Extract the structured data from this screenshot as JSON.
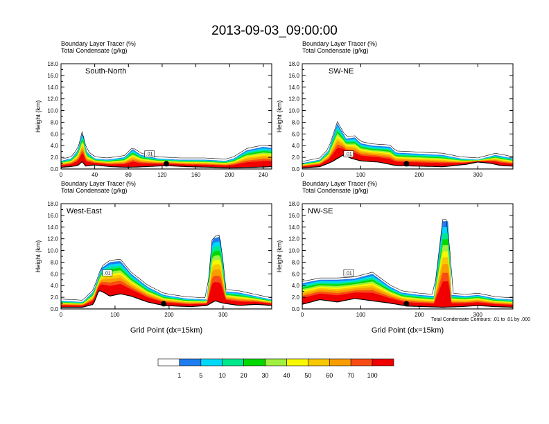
{
  "title": "2013-09-03_09:00:00",
  "field_labels": [
    "Boundary Layer Tracer   (%)",
    "Total Condensate   (g/kg)"
  ],
  "chart_data": [
    {
      "type": "heatmap",
      "label": "South-North",
      "xlim": [
        0,
        250
      ],
      "xticks": [
        0,
        40,
        80,
        120,
        160,
        200,
        240
      ],
      "ylim": [
        0,
        18
      ],
      "yticks": [
        0.0,
        2.0,
        4.0,
        6.0,
        8.0,
        10.0,
        12.0,
        14.0,
        16.0,
        18.0
      ],
      "ylabel": "Height (km)",
      "xlabel": "",
      "terrain": [
        [
          0,
          0.3
        ],
        [
          10,
          0.4
        ],
        [
          20,
          0.6
        ],
        [
          26,
          1.4
        ],
        [
          28,
          0.5
        ],
        [
          40,
          0.7
        ],
        [
          60,
          0.4
        ],
        [
          80,
          0.3
        ],
        [
          100,
          0.4
        ],
        [
          125,
          0.6
        ],
        [
          150,
          0.4
        ],
        [
          180,
          0.3
        ],
        [
          200,
          0.2
        ],
        [
          230,
          0.3
        ],
        [
          250,
          0.4
        ]
      ],
      "pbl_top": [
        [
          0,
          1.4
        ],
        [
          12,
          1.8
        ],
        [
          20,
          3.2
        ],
        [
          26,
          6.6
        ],
        [
          30,
          3.0
        ],
        [
          40,
          1.8
        ],
        [
          55,
          1.6
        ],
        [
          75,
          2.0
        ],
        [
          85,
          3.4
        ],
        [
          95,
          2.4
        ],
        [
          115,
          1.8
        ],
        [
          140,
          1.6
        ],
        [
          170,
          1.6
        ],
        [
          195,
          1.4
        ],
        [
          205,
          1.8
        ],
        [
          220,
          3.2
        ],
        [
          240,
          3.8
        ],
        [
          250,
          3.6
        ]
      ],
      "condensate_contour_label": ".01",
      "marker_x": 125
    },
    {
      "type": "heatmap",
      "label": "SW-NE",
      "xlim": [
        0,
        360
      ],
      "xticks": [
        0,
        100,
        200,
        300
      ],
      "ylim": [
        0,
        18
      ],
      "yticks": [
        0.0,
        2.0,
        4.0,
        6.0,
        8.0,
        10.0,
        12.0,
        14.0,
        16.0,
        18.0
      ],
      "ylabel": "Height (km)",
      "xlabel": "",
      "terrain": [
        [
          0,
          0.2
        ],
        [
          30,
          0.4
        ],
        [
          50,
          1.2
        ],
        [
          70,
          2.4
        ],
        [
          85,
          1.8
        ],
        [
          100,
          1.4
        ],
        [
          130,
          1.2
        ],
        [
          160,
          0.6
        ],
        [
          200,
          0.5
        ],
        [
          240,
          0.4
        ],
        [
          280,
          0.8
        ],
        [
          300,
          1.2
        ],
        [
          320,
          1.0
        ],
        [
          340,
          0.6
        ],
        [
          360,
          0.5
        ]
      ],
      "pbl_top": [
        [
          0,
          1.0
        ],
        [
          30,
          1.6
        ],
        [
          45,
          3.2
        ],
        [
          60,
          7.8
        ],
        [
          75,
          5.2
        ],
        [
          90,
          5.4
        ],
        [
          100,
          4.4
        ],
        [
          120,
          4.0
        ],
        [
          150,
          3.8
        ],
        [
          160,
          2.8
        ],
        [
          200,
          2.6
        ],
        [
          240,
          2.4
        ],
        [
          270,
          1.8
        ],
        [
          300,
          1.6
        ],
        [
          330,
          2.4
        ],
        [
          360,
          1.8
        ]
      ],
      "condensate_contour_label": ".01",
      "marker_x": 178
    },
    {
      "type": "heatmap",
      "label": "West-East",
      "xlim": [
        0,
        390
      ],
      "xticks": [
        0,
        100,
        200,
        300
      ],
      "ylim": [
        0,
        18
      ],
      "yticks": [
        0.0,
        2.0,
        4.0,
        6.0,
        8.0,
        10.0,
        12.0,
        14.0,
        16.0,
        18.0
      ],
      "ylabel": "Height (km)",
      "xlabel": "Grid Point (dx=15km)",
      "terrain": [
        [
          0,
          0.3
        ],
        [
          40,
          0.3
        ],
        [
          60,
          0.8
        ],
        [
          70,
          3.2
        ],
        [
          80,
          2.8
        ],
        [
          90,
          2.2
        ],
        [
          110,
          2.6
        ],
        [
          130,
          2.2
        ],
        [
          160,
          1.2
        ],
        [
          190,
          0.6
        ],
        [
          240,
          0.4
        ],
        [
          270,
          0.6
        ],
        [
          285,
          1.4
        ],
        [
          300,
          1.0
        ],
        [
          330,
          0.6
        ],
        [
          360,
          0.8
        ],
        [
          390,
          0.6
        ]
      ],
      "pbl_top": [
        [
          0,
          1.4
        ],
        [
          40,
          1.2
        ],
        [
          60,
          3.0
        ],
        [
          75,
          7.0
        ],
        [
          90,
          8.0
        ],
        [
          110,
          8.2
        ],
        [
          130,
          6.0
        ],
        [
          160,
          3.8
        ],
        [
          190,
          2.4
        ],
        [
          230,
          1.8
        ],
        [
          270,
          1.6
        ],
        [
          280,
          12.0
        ],
        [
          295,
          12.4
        ],
        [
          305,
          3.0
        ],
        [
          330,
          2.8
        ],
        [
          360,
          2.2
        ],
        [
          390,
          1.6
        ]
      ],
      "condensate_contour_label": ".01",
      "marker_x": 190
    },
    {
      "type": "heatmap",
      "label": "NW-SE",
      "xlim": [
        0,
        360
      ],
      "xticks": [
        0,
        100,
        200,
        300
      ],
      "ylim": [
        0,
        18
      ],
      "yticks": [
        0.0,
        2.0,
        4.0,
        6.0,
        8.0,
        10.0,
        12.0,
        14.0,
        16.0,
        18.0
      ],
      "ylabel": "Height (km)",
      "xlabel": "Grid Point (dx=15km)",
      "terrain": [
        [
          0,
          0.8
        ],
        [
          30,
          1.6
        ],
        [
          60,
          1.2
        ],
        [
          90,
          1.8
        ],
        [
          120,
          1.4
        ],
        [
          150,
          1.0
        ],
        [
          180,
          0.5
        ],
        [
          210,
          0.4
        ],
        [
          240,
          0.3
        ],
        [
          270,
          0.4
        ],
        [
          300,
          0.6
        ],
        [
          330,
          0.4
        ],
        [
          360,
          0.3
        ]
      ],
      "pbl_top": [
        [
          0,
          4.4
        ],
        [
          30,
          5.0
        ],
        [
          60,
          5.0
        ],
        [
          90,
          5.2
        ],
        [
          120,
          6.0
        ],
        [
          150,
          3.8
        ],
        [
          170,
          2.8
        ],
        [
          200,
          2.4
        ],
        [
          225,
          2.2
        ],
        [
          240,
          15.0
        ],
        [
          250,
          15.0
        ],
        [
          255,
          2.4
        ],
        [
          280,
          2.2
        ],
        [
          300,
          2.4
        ],
        [
          330,
          1.8
        ],
        [
          360,
          1.6
        ]
      ],
      "condensate_contour_label": ".01",
      "marker_x": 178
    }
  ],
  "contour_note": "Total Condensate Contours: .01 to .01 by .000",
  "colorbar": {
    "colors": [
      "#ffffff",
      "#1e7cf0",
      "#00d8f8",
      "#00e88c",
      "#00d800",
      "#a0f040",
      "#f8f800",
      "#f8c800",
      "#f89c00",
      "#f84c14",
      "#f00000"
    ],
    "labels": [
      "1",
      "5",
      "10",
      "20",
      "30",
      "40",
      "50",
      "60",
      "70",
      "100"
    ]
  }
}
